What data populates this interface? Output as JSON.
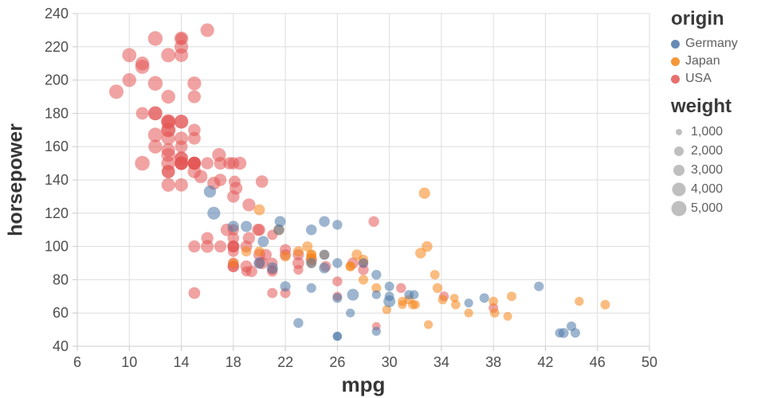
{
  "chart_data": {
    "type": "scatter",
    "xlabel": "mpg",
    "ylabel": "horsepower",
    "x_field": "mpg",
    "y_field": "horsepower",
    "color_field": "origin",
    "size_field": "weight",
    "xlim": [
      6,
      50
    ],
    "ylim": [
      40,
      240
    ],
    "x_ticks": [
      6,
      10,
      14,
      18,
      22,
      26,
      30,
      34,
      38,
      42,
      46,
      50
    ],
    "y_ticks": [
      40,
      60,
      80,
      100,
      120,
      140,
      160,
      180,
      200,
      220,
      240
    ],
    "grid": true,
    "point_opacity": 0.55,
    "colors": {
      "Germany": "#4c78a8",
      "Japan": "#f58518",
      "USA": "#e45756"
    },
    "legend": {
      "origin": {
        "title": "origin",
        "items": [
          {
            "label": "Germany",
            "color": "#4c78a8"
          },
          {
            "label": "Japan",
            "color": "#f58518"
          },
          {
            "label": "USA",
            "color": "#e45756"
          }
        ]
      },
      "weight": {
        "title": "weight",
        "items": [
          {
            "label": "1,000",
            "value": 1000
          },
          {
            "label": "2,000",
            "value": 2000
          },
          {
            "label": "3,000",
            "value": 3000
          },
          {
            "label": "4,000",
            "value": 4000
          },
          {
            "label": "5,000",
            "value": 5000
          }
        ]
      }
    },
    "points": [
      [
        18,
        130,
        3504,
        "USA"
      ],
      [
        15,
        165,
        3693,
        "USA"
      ],
      [
        18,
        150,
        3436,
        "USA"
      ],
      [
        16,
        150,
        3433,
        "USA"
      ],
      [
        17,
        140,
        3449,
        "USA"
      ],
      [
        15,
        198,
        4341,
        "USA"
      ],
      [
        14,
        220,
        4354,
        "USA"
      ],
      [
        14,
        215,
        4312,
        "USA"
      ],
      [
        14,
        225,
        4425,
        "USA"
      ],
      [
        15,
        190,
        3850,
        "USA"
      ],
      [
        15,
        170,
        3563,
        "USA"
      ],
      [
        14,
        160,
        3609,
        "USA"
      ],
      [
        15,
        150,
        3761,
        "USA"
      ],
      [
        14,
        225,
        3086,
        "USA"
      ],
      [
        22,
        95,
        2833,
        "USA"
      ],
      [
        18,
        97,
        2774,
        "USA"
      ],
      [
        21,
        85,
        2587,
        "USA"
      ],
      [
        21,
        90,
        2648,
        "USA"
      ],
      [
        10,
        215,
        4615,
        "USA"
      ],
      [
        10,
        200,
        4376,
        "USA"
      ],
      [
        11,
        210,
        4382,
        "USA"
      ],
      [
        9,
        193,
        4732,
        "USA"
      ],
      [
        28,
        90,
        2264,
        "USA"
      ],
      [
        19,
        88,
        3302,
        "USA"
      ],
      [
        16,
        105,
        3439,
        "USA"
      ],
      [
        17,
        100,
        3329,
        "USA"
      ],
      [
        19,
        100,
        3282,
        "USA"
      ],
      [
        18,
        100,
        3288,
        "USA"
      ],
      [
        14,
        165,
        4209,
        "USA"
      ],
      [
        14,
        175,
        4464,
        "USA"
      ],
      [
        14,
        153,
        4154,
        "USA"
      ],
      [
        14,
        150,
        4096,
        "USA"
      ],
      [
        12,
        180,
        4499,
        "USA"
      ],
      [
        13,
        170,
        4746,
        "USA"
      ],
      [
        13,
        175,
        5140,
        "USA"
      ],
      [
        18,
        110,
        2962,
        "USA"
      ],
      [
        22,
        72,
        2408,
        "USA"
      ],
      [
        18,
        88,
        3139,
        "USA"
      ],
      [
        23,
        86,
        2220,
        "USA"
      ],
      [
        26,
        70,
        1955,
        "USA"
      ],
      [
        20,
        90,
        2408,
        "USA"
      ],
      [
        21,
        86,
        2226,
        "USA"
      ],
      [
        13,
        165,
        4274,
        "USA"
      ],
      [
        14,
        175,
        4385,
        "USA"
      ],
      [
        15,
        150,
        4135,
        "USA"
      ],
      [
        14,
        153,
        4129,
        "USA"
      ],
      [
        17,
        150,
        3672,
        "USA"
      ],
      [
        11,
        208,
        4633,
        "USA"
      ],
      [
        13,
        155,
        4502,
        "USA"
      ],
      [
        12,
        160,
        4456,
        "USA"
      ],
      [
        13,
        190,
        4422,
        "USA"
      ],
      [
        15,
        150,
        3892,
        "USA"
      ],
      [
        13,
        145,
        4098,
        "USA"
      ],
      [
        13,
        137,
        4294,
        "USA"
      ],
      [
        14,
        150,
        4077,
        "USA"
      ],
      [
        13,
        175,
        4100,
        "USA"
      ],
      [
        14,
        150,
        3672,
        "USA"
      ],
      [
        13,
        145,
        3988,
        "USA"
      ],
      [
        14,
        137,
        4042,
        "USA"
      ],
      [
        15,
        150,
        3777,
        "USA"
      ],
      [
        12,
        198,
        4952,
        "USA"
      ],
      [
        13,
        150,
        4464,
        "USA"
      ],
      [
        13,
        158,
        4363,
        "USA"
      ],
      [
        14,
        150,
        4237,
        "USA"
      ],
      [
        13,
        215,
        4735,
        "USA"
      ],
      [
        12,
        225,
        4951,
        "USA"
      ],
      [
        13,
        175,
        3821,
        "USA"
      ],
      [
        18,
        105,
        3121,
        "USA"
      ],
      [
        18,
        100,
        3278,
        "USA"
      ],
      [
        18,
        88,
        2945,
        "USA"
      ],
      [
        18,
        100,
        3021,
        "USA"
      ],
      [
        23,
        95,
        2904,
        "USA"
      ],
      [
        11,
        150,
        4997,
        "USA"
      ],
      [
        12,
        167,
        4906,
        "USA"
      ],
      [
        13,
        170,
        4654,
        "USA"
      ],
      [
        12,
        180,
        4499,
        "USA"
      ],
      [
        18,
        90,
        2789,
        "USA"
      ],
      [
        21,
        72,
        2401,
        "USA"
      ],
      [
        19,
        85,
        2310,
        "USA"
      ],
      [
        21,
        107,
        2472,
        "USA"
      ],
      [
        15,
        145,
        4082,
        "USA"
      ],
      [
        16,
        230,
        4278,
        "USA"
      ],
      [
        15,
        150,
        3399,
        "USA"
      ],
      [
        11,
        180,
        3664,
        "USA"
      ],
      [
        20,
        95,
        3282,
        "USA"
      ],
      [
        16,
        100,
        3781,
        "USA"
      ],
      [
        15,
        100,
        3336,
        "USA"
      ],
      [
        20,
        110,
        3221,
        "USA"
      ],
      [
        29,
        52,
        1649,
        "USA"
      ],
      [
        26,
        79,
        2255,
        "USA"
      ],
      [
        17.5,
        110,
        3520,
        "USA"
      ],
      [
        20.5,
        95,
        3155,
        "USA"
      ],
      [
        19.9,
        110,
        3365,
        "USA"
      ],
      [
        18.2,
        135,
        3830,
        "USA"
      ],
      [
        19.2,
        125,
        3850,
        "USA"
      ],
      [
        16.9,
        155,
        4360,
        "USA"
      ],
      [
        15.5,
        142,
        4054,
        "USA"
      ],
      [
        18.5,
        150,
        3940,
        "USA"
      ],
      [
        16.5,
        138,
        3955,
        "USA"
      ],
      [
        19.4,
        85,
        3035,
        "USA"
      ],
      [
        20.2,
        139,
        3570,
        "USA"
      ],
      [
        18.1,
        139,
        3205,
        "USA"
      ],
      [
        17.7,
        150,
        3445,
        "USA"
      ],
      [
        23,
        90,
        3210,
        "USA"
      ],
      [
        28.8,
        115,
        2595,
        "USA"
      ],
      [
        30.9,
        75,
        2230,
        "USA"
      ],
      [
        34.2,
        70,
        2200,
        "USA"
      ],
      [
        38,
        63,
        2125,
        "USA"
      ],
      [
        28,
        86,
        2605,
        "USA"
      ],
      [
        24,
        92,
        3015,
        "USA"
      ],
      [
        15,
        72,
        3158,
        "USA"
      ],
      [
        22,
        98,
        2945,
        "USA"
      ],
      [
        20.2,
        90,
        3420,
        "USA"
      ],
      [
        19.2,
        105,
        3425,
        "USA"
      ],
      [
        27.2,
        90,
        2950,
        "USA"
      ],
      [
        25.1,
        88,
        2720,
        "USA"
      ],
      [
        24,
        95,
        2372,
        "Japan"
      ],
      [
        27,
        88,
        2130,
        "Japan"
      ],
      [
        25,
        95,
        2228,
        "Japan"
      ],
      [
        31,
        65,
        1773,
        "Japan"
      ],
      [
        35,
        69,
        1613,
        "Japan"
      ],
      [
        19,
        97,
        2330,
        "Japan"
      ],
      [
        28,
        92,
        2288,
        "Japan"
      ],
      [
        23,
        97,
        2506,
        "Japan"
      ],
      [
        28,
        80,
        2164,
        "Japan"
      ],
      [
        27,
        88,
        2100,
        "Japan"
      ],
      [
        20,
        97,
        2279,
        "Japan"
      ],
      [
        22,
        94,
        2379,
        "Japan"
      ],
      [
        18,
        90,
        2124,
        "Japan"
      ],
      [
        20,
        122,
        2807,
        "Japan"
      ],
      [
        24,
        95,
        2278,
        "Japan"
      ],
      [
        31,
        67,
        1950,
        "Japan"
      ],
      [
        32,
        65,
        1836,
        "Japan"
      ],
      [
        24,
        90,
        2108,
        "Japan"
      ],
      [
        33,
        53,
        1795,
        "Japan"
      ],
      [
        29,
        75,
        2171,
        "Japan"
      ],
      [
        24,
        93,
        2391,
        "Japan"
      ],
      [
        36.1,
        60,
        1800,
        "Japan"
      ],
      [
        32.4,
        96,
        2665,
        "Japan"
      ],
      [
        39.4,
        70,
        2070,
        "Japan"
      ],
      [
        33.5,
        83,
        2075,
        "Japan"
      ],
      [
        38.1,
        60,
        1968,
        "Japan"
      ],
      [
        31.5,
        68,
        2045,
        "Japan"
      ],
      [
        27.5,
        95,
        2560,
        "Japan"
      ],
      [
        23.7,
        100,
        2420,
        "Japan"
      ],
      [
        21.5,
        110,
        2720,
        "Japan"
      ],
      [
        32.7,
        132,
        2910,
        "Japan"
      ],
      [
        32.9,
        100,
        2615,
        "Japan"
      ],
      [
        31.8,
        65,
        2020,
        "Japan"
      ],
      [
        38,
        67,
        1995,
        "Japan"
      ],
      [
        34.1,
        68,
        1985,
        "Japan"
      ],
      [
        39.1,
        58,
        1755,
        "Japan"
      ],
      [
        35.1,
        65,
        1975,
        "Japan"
      ],
      [
        44.6,
        67,
        1850,
        "Japan"
      ],
      [
        46.6,
        65,
        2110,
        "Japan"
      ],
      [
        29.8,
        62,
        1845,
        "Japan"
      ],
      [
        33.7,
        75,
        2210,
        "Japan"
      ],
      [
        26,
        46,
        1835,
        "Germany"
      ],
      [
        24,
        90,
        2430,
        "Germany"
      ],
      [
        25,
        95,
        2375,
        "Germany"
      ],
      [
        26,
        113,
        2234,
        "Germany"
      ],
      [
        28,
        90,
        2123,
        "Germany"
      ],
      [
        30,
        70,
        2074,
        "Germany"
      ],
      [
        30,
        76,
        2065,
        "Germany"
      ],
      [
        27,
        60,
        1834,
        "Germany"
      ],
      [
        23,
        54,
        2254,
        "Germany"
      ],
      [
        25,
        87,
        2672,
        "Germany"
      ],
      [
        26,
        90,
        2265,
        "Germany"
      ],
      [
        29,
        49,
        1867,
        "Germany"
      ],
      [
        24,
        75,
        2158,
        "Germany"
      ],
      [
        20,
        90,
        2979,
        "Germany"
      ],
      [
        19,
        112,
        2868,
        "Germany"
      ],
      [
        24,
        110,
        2660,
        "Germany"
      ],
      [
        18,
        112,
        2933,
        "Germany"
      ],
      [
        22,
        76,
        2511,
        "Germany"
      ],
      [
        21,
        87,
        2979,
        "Germany"
      ],
      [
        26,
        69,
        2189,
        "Germany"
      ],
      [
        25,
        115,
        2671,
        "Germany"
      ],
      [
        26,
        46,
        1950,
        "Germany"
      ],
      [
        29,
        71,
        1825,
        "Germany"
      ],
      [
        31.5,
        71,
        1990,
        "Germany"
      ],
      [
        16.2,
        133,
        3410,
        "Germany"
      ],
      [
        16.5,
        120,
        3820,
        "Germany"
      ],
      [
        20.3,
        103,
        2830,
        "Germany"
      ],
      [
        21.6,
        115,
        2795,
        "Germany"
      ],
      [
        36.1,
        66,
        1800,
        "Germany"
      ],
      [
        43.1,
        48,
        1985,
        "Germany"
      ],
      [
        44.3,
        48,
        2085,
        "Germany"
      ],
      [
        43.4,
        48,
        2335,
        "Germany"
      ],
      [
        44,
        52,
        2130,
        "Germany"
      ],
      [
        41.5,
        76,
        2144,
        "Germany"
      ],
      [
        37.3,
        69,
        2130,
        "Germany"
      ],
      [
        27.2,
        71,
        3190,
        "Germany"
      ],
      [
        30,
        67,
        3250,
        "Germany"
      ],
      [
        29,
        83,
        2219,
        "Germany"
      ],
      [
        21.5,
        110,
        2600,
        "Germany"
      ],
      [
        31.9,
        71,
        1925,
        "Germany"
      ]
    ]
  }
}
